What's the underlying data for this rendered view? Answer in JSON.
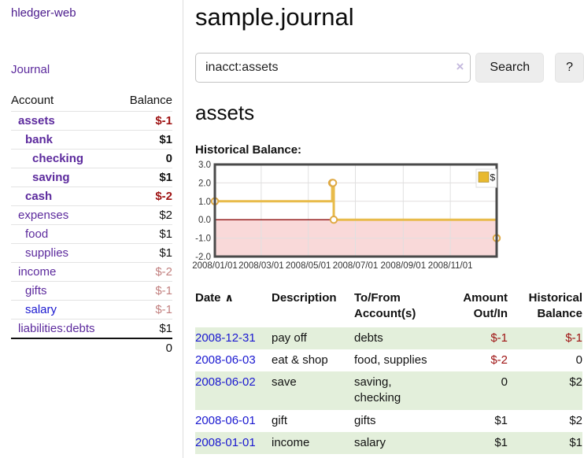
{
  "app": {
    "brand": "hledger-web"
  },
  "sidebar": {
    "journal_link": "Journal",
    "header": {
      "account": "Account",
      "balance": "Balance"
    },
    "accounts": [
      {
        "name": "assets",
        "depth": 1,
        "balance": "$-1",
        "bold": true,
        "neg": "strong",
        "blue": false
      },
      {
        "name": "bank",
        "depth": 2,
        "balance": "$1",
        "bold": true,
        "neg": "none",
        "blue": false
      },
      {
        "name": "checking",
        "depth": 3,
        "balance": "0",
        "bold": true,
        "neg": "none",
        "blue": false
      },
      {
        "name": "saving",
        "depth": 3,
        "balance": "$1",
        "bold": true,
        "neg": "none",
        "blue": false
      },
      {
        "name": "cash",
        "depth": 2,
        "balance": "$-2",
        "bold": true,
        "neg": "strong",
        "blue": false
      },
      {
        "name": "expenses",
        "depth": 1,
        "balance": "$2",
        "bold": false,
        "neg": "none",
        "blue": false
      },
      {
        "name": "food",
        "depth": 2,
        "balance": "$1",
        "bold": false,
        "neg": "none",
        "blue": false
      },
      {
        "name": "supplies",
        "depth": 2,
        "balance": "$1",
        "bold": false,
        "neg": "none",
        "blue": false
      },
      {
        "name": "income",
        "depth": 1,
        "balance": "$-2",
        "bold": false,
        "neg": "dim",
        "blue": false
      },
      {
        "name": "gifts",
        "depth": 2,
        "balance": "$-1",
        "bold": false,
        "neg": "dim",
        "blue": false
      },
      {
        "name": "salary",
        "depth": 2,
        "balance": "$-1",
        "bold": false,
        "neg": "dim",
        "blue": true
      },
      {
        "name": "liabilities:debts",
        "depth": 1,
        "balance": "$1",
        "bold": false,
        "neg": "none",
        "blue": false
      }
    ],
    "total": "0"
  },
  "header": {
    "title": "sample.journal"
  },
  "search": {
    "value": "inacct:assets",
    "clear_icon": "×",
    "button_label": "Search",
    "help_label": "?"
  },
  "account_page": {
    "heading": "assets",
    "chart_label": "Historical Balance:"
  },
  "chart_data": {
    "type": "line",
    "step": true,
    "title": "Historical Balance:",
    "x_range": [
      "2008-01-01",
      "2008-12-31"
    ],
    "ylim": [
      -2,
      3
    ],
    "y_ticks": [
      "3.0",
      "2.0",
      "1.0",
      "0.0",
      "-1.0",
      "-2.0"
    ],
    "x_ticks": [
      "2008/01/01",
      "2008/03/01",
      "2008/05/01",
      "2008/07/01",
      "2008/09/01",
      "2008/11/01"
    ],
    "legend": [
      {
        "label": "$",
        "color": "#e8b92e"
      }
    ],
    "series": [
      {
        "name": "$",
        "points": [
          [
            "2008-01-01",
            1
          ],
          [
            "2008-06-01",
            2
          ],
          [
            "2008-06-02",
            2
          ],
          [
            "2008-06-03",
            0
          ],
          [
            "2008-12-31",
            -1
          ]
        ]
      }
    ],
    "grid": true,
    "legend_position": "top-right",
    "line_color": "#e8bb4a",
    "marker_stroke": "#dfa943",
    "negative_region_color": "#f9d9d9",
    "zero_line_color": "#8c0d0d"
  },
  "register": {
    "columns": [
      {
        "label": "Date",
        "align": "left",
        "sorted": true
      },
      {
        "label": "Description",
        "align": "left",
        "sorted": false
      },
      {
        "label": "To/From\nAccount(s)",
        "align": "left",
        "sorted": false
      },
      {
        "label": "Amount\nOut/In",
        "align": "right",
        "sorted": false
      },
      {
        "label": "Historical\nBalance",
        "align": "right",
        "sorted": false
      }
    ],
    "sort_caret": "∧",
    "rows": [
      {
        "date": "2008-12-31",
        "description": "pay off",
        "accounts": "debts",
        "amount": "$-1",
        "amount_neg": true,
        "balance": "$-1",
        "balance_neg": true,
        "shade": true
      },
      {
        "date": "2008-06-03",
        "description": "eat & shop",
        "accounts": "food, supplies",
        "amount": "$-2",
        "amount_neg": true,
        "balance": "0",
        "balance_neg": false,
        "shade": false
      },
      {
        "date": "2008-06-02",
        "description": "save",
        "accounts": "saving,\nchecking",
        "amount": "0",
        "amount_neg": false,
        "balance": "$2",
        "balance_neg": false,
        "shade": true
      },
      {
        "date": "2008-06-01",
        "description": "gift",
        "accounts": "gifts",
        "amount": "$1",
        "amount_neg": false,
        "balance": "$2",
        "balance_neg": false,
        "shade": false
      },
      {
        "date": "2008-01-01",
        "description": "income",
        "accounts": "salary",
        "amount": "$1",
        "amount_neg": false,
        "balance": "$1",
        "balance_neg": false,
        "shade": true
      }
    ]
  },
  "colors": {
    "link_visited_purple": "#5c2a9d",
    "link_blue": "#1a18d0",
    "negative_strong": "#9e1212",
    "negative_dim": "#c2807f",
    "row_shade_green": "#e3efdb",
    "chart_gold": "#e8bb4a",
    "chart_pink": "#f9d9d9",
    "chart_zero_red": "#8c0d0d"
  }
}
